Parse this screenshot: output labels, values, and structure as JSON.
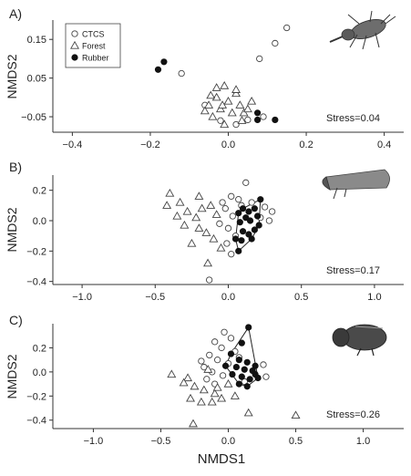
{
  "figure": {
    "xlabel": "NMDS1"
  },
  "legend": {
    "items": [
      {
        "label": "CTCS",
        "marker": "circle-open"
      },
      {
        "label": "Forest",
        "marker": "triangle-open"
      },
      {
        "label": "Rubber",
        "marker": "circle-filled"
      }
    ]
  },
  "colors": {
    "axis": "#333333",
    "marker_stroke": "#444444",
    "filled": "#111111",
    "hull": "#222222",
    "beetle_body": "#555555"
  },
  "chart_data": [
    {
      "type": "scatter",
      "panel_label": "A)",
      "ylabel": "NMDS2",
      "xlim": [
        -0.45,
        0.45
      ],
      "ylim": [
        -0.09,
        0.2
      ],
      "xticks": [
        -0.4,
        -0.2,
        0.0,
        0.2,
        0.4
      ],
      "xtick_labels": [
        "−0.4",
        "−0.2",
        "0.0",
        "0.2",
        "0.4"
      ],
      "yticks": [
        -0.05,
        0.05,
        0.15
      ],
      "ytick_labels": [
        "−0.05",
        "0.05",
        "0.15"
      ],
      "stress": "Stress=0.04",
      "icon": "weevil-icon",
      "legend": true,
      "series": [
        {
          "name": "CTCS",
          "marker": "circle-open",
          "points": [
            [
              0.15,
              0.18
            ],
            [
              0.12,
              0.14
            ],
            [
              0.08,
              0.1
            ],
            [
              -0.12,
              0.062
            ],
            [
              -0.06,
              -0.02
            ],
            [
              0.02,
              -0.07
            ],
            [
              0.05,
              -0.058
            ],
            [
              0.09,
              -0.05
            ],
            [
              -0.02,
              -0.06
            ]
          ]
        },
        {
          "name": "Forest",
          "marker": "triangle-open",
          "points": [
            [
              -0.01,
              0.03
            ],
            [
              0.02,
              0.01
            ],
            [
              -0.03,
              0.0
            ],
            [
              0.0,
              -0.01
            ],
            [
              -0.05,
              -0.02
            ],
            [
              0.03,
              -0.02
            ],
            [
              -0.02,
              -0.03
            ],
            [
              0.01,
              -0.04
            ],
            [
              -0.04,
              -0.05
            ],
            [
              0.06,
              -0.01
            ],
            [
              0.04,
              -0.04
            ],
            [
              -0.06,
              -0.035
            ],
            [
              -0.01,
              -0.07
            ],
            [
              0.02,
              0.02
            ],
            [
              -0.03,
              0.025
            ],
            [
              0.05,
              -0.03
            ],
            [
              -0.015,
              -0.02
            ],
            [
              0.035,
              -0.06
            ],
            [
              -0.045,
              0.005
            ]
          ]
        },
        {
          "name": "Rubber",
          "marker": "circle-filled",
          "points": [
            [
              -0.165,
              0.092
            ],
            [
              -0.18,
              0.072
            ],
            [
              0.12,
              -0.058
            ],
            [
              0.075,
              -0.04
            ],
            [
              0.075,
              -0.058
            ]
          ]
        }
      ],
      "hull": false
    },
    {
      "type": "scatter",
      "panel_label": "B)",
      "ylabel": "NMDS2",
      "xlim": [
        -1.2,
        1.2
      ],
      "ylim": [
        -0.42,
        0.3
      ],
      "xticks": [
        -1.0,
        -0.5,
        0.0,
        0.5,
        1.0
      ],
      "xtick_labels": [
        "−1.0",
        "−0.5",
        "0.0",
        "0.5",
        "1.0"
      ],
      "yticks": [
        -0.4,
        -0.2,
        0.0,
        0.2
      ],
      "ytick_labels": [
        "−0.4",
        "−0.2",
        "0.0",
        "0.2"
      ],
      "stress": "Stress=0.17",
      "icon": "bark-beetle-icon",
      "legend": false,
      "series": [
        {
          "name": "CTCS",
          "marker": "circle-open",
          "points": [
            [
              0.12,
              0.25
            ],
            [
              0.02,
              0.16
            ],
            [
              0.07,
              0.14
            ],
            [
              0.16,
              0.12
            ],
            [
              0.25,
              0.09
            ],
            [
              0.3,
              0.06
            ],
            [
              -0.02,
              0.08
            ],
            [
              0.03,
              0.03
            ],
            [
              0.28,
              0.0
            ],
            [
              -0.06,
              -0.02
            ],
            [
              0.0,
              -0.05
            ],
            [
              0.05,
              -0.1
            ],
            [
              -0.01,
              -0.15
            ],
            [
              0.02,
              -0.22
            ],
            [
              -0.13,
              -0.39
            ],
            [
              0.22,
              0.02
            ],
            [
              0.09,
              0.1
            ],
            [
              -0.04,
              0.12
            ]
          ]
        },
        {
          "name": "Forest",
          "marker": "triangle-open",
          "points": [
            [
              -0.4,
              0.18
            ],
            [
              -0.33,
              0.12
            ],
            [
              -0.28,
              0.06
            ],
            [
              -0.2,
              0.16
            ],
            [
              -0.22,
              0.02
            ],
            [
              -0.3,
              -0.03
            ],
            [
              -0.15,
              -0.08
            ],
            [
              -0.25,
              -0.15
            ],
            [
              -0.14,
              -0.28
            ],
            [
              -0.12,
              0.1
            ],
            [
              -0.08,
              0.04
            ],
            [
              -0.18,
              0.08
            ],
            [
              -0.35,
              0.03
            ],
            [
              -0.1,
              -0.12
            ],
            [
              -0.05,
              -0.18
            ],
            [
              -0.2,
              -0.05
            ],
            [
              -0.42,
              0.1
            ]
          ]
        },
        {
          "name": "Rubber",
          "marker": "circle-filled",
          "points": [
            [
              0.22,
              0.14
            ],
            [
              0.1,
              0.08
            ],
            [
              0.18,
              0.08
            ],
            [
              0.14,
              0.06
            ],
            [
              0.07,
              0.05
            ],
            [
              0.2,
              0.03
            ],
            [
              0.12,
              0.02
            ],
            [
              0.15,
              0.0
            ],
            [
              0.08,
              -0.01
            ],
            [
              0.21,
              -0.03
            ],
            [
              0.18,
              -0.06
            ],
            [
              0.1,
              -0.07
            ],
            [
              0.14,
              -0.09
            ],
            [
              0.05,
              -0.12
            ],
            [
              0.09,
              -0.13
            ],
            [
              0.07,
              -0.2
            ],
            [
              0.16,
              -0.12
            ]
          ]
        }
      ],
      "hull": true
    },
    {
      "type": "scatter",
      "panel_label": "C)",
      "ylabel": "NMDS2",
      "xlim": [
        -1.3,
        1.3
      ],
      "ylim": [
        -0.47,
        0.4
      ],
      "xticks": [
        -1.0,
        -0.5,
        0.0,
        0.5,
        1.0
      ],
      "xtick_labels": [
        "−1.0",
        "−0.5",
        "0.0",
        "0.5",
        "1.0"
      ],
      "yticks": [
        -0.4,
        -0.2,
        0.0,
        0.2
      ],
      "ytick_labels": [
        "−0.4",
        "−0.2",
        "0.0",
        "0.2"
      ],
      "stress": "Stress=0.26",
      "icon": "ambrosia-beetle-icon",
      "legend": false,
      "series": [
        {
          "name": "CTCS",
          "marker": "circle-open",
          "points": [
            [
              -0.03,
              0.33
            ],
            [
              0.02,
              0.28
            ],
            [
              -0.1,
              0.25
            ],
            [
              -0.05,
              0.2
            ],
            [
              0.05,
              0.17
            ],
            [
              -0.14,
              0.14
            ],
            [
              -0.08,
              0.1
            ],
            [
              0.0,
              0.07
            ],
            [
              -0.18,
              0.04
            ],
            [
              -0.12,
              0.0
            ],
            [
              -0.04,
              -0.03
            ],
            [
              -0.16,
              -0.06
            ],
            [
              -0.1,
              -0.1
            ],
            [
              0.08,
              0.12
            ],
            [
              0.26,
              0.06
            ],
            [
              0.28,
              -0.04
            ],
            [
              0.12,
              -0.08
            ],
            [
              -0.2,
              0.09
            ]
          ]
        },
        {
          "name": "Forest",
          "marker": "triangle-open",
          "points": [
            [
              -0.42,
              -0.02
            ],
            [
              -0.3,
              -0.05
            ],
            [
              -0.25,
              -0.12
            ],
            [
              -0.18,
              -0.15
            ],
            [
              -0.1,
              -0.18
            ],
            [
              -0.05,
              -0.22
            ],
            [
              -0.28,
              -0.22
            ],
            [
              -0.2,
              -0.25
            ],
            [
              -0.12,
              -0.25
            ],
            [
              -0.08,
              -0.13
            ],
            [
              0.0,
              -0.1
            ],
            [
              0.05,
              -0.2
            ],
            [
              0.15,
              -0.34
            ],
            [
              0.5,
              -0.36
            ],
            [
              -0.26,
              -0.43
            ],
            [
              -0.33,
              -0.09
            ],
            [
              -0.15,
              0.02
            ]
          ]
        },
        {
          "name": "Rubber",
          "marker": "circle-filled",
          "points": [
            [
              0.15,
              0.37
            ],
            [
              0.1,
              0.24
            ],
            [
              0.02,
              0.15
            ],
            [
              0.08,
              0.1
            ],
            [
              0.14,
              0.08
            ],
            [
              0.2,
              0.05
            ],
            [
              0.06,
              0.04
            ],
            [
              0.12,
              0.02
            ],
            [
              0.18,
              0.01
            ],
            [
              0.03,
              -0.02
            ],
            [
              0.1,
              -0.04
            ],
            [
              0.16,
              -0.06
            ],
            [
              0.22,
              -0.05
            ],
            [
              0.08,
              -0.1
            ],
            [
              0.14,
              -0.12
            ],
            [
              0.2,
              -0.02
            ],
            [
              -0.02,
              0.05
            ]
          ]
        }
      ],
      "hull": true
    }
  ]
}
